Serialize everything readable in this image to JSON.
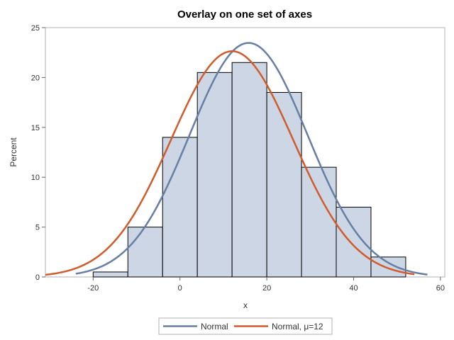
{
  "chart_data": {
    "type": "histogram",
    "title": "Overlay on one set of axes",
    "xlabel": "x",
    "ylabel": "Percent",
    "xlim": [
      -31,
      61
    ],
    "ylim": [
      0,
      25
    ],
    "xticks": [
      -20,
      0,
      20,
      40,
      60
    ],
    "yticks": [
      0,
      5,
      10,
      15,
      20,
      25
    ],
    "grid": false,
    "legend_position": "bottom",
    "bins": [
      {
        "x0": -20,
        "x1": -12,
        "value": 0.5
      },
      {
        "x0": -12,
        "x1": -4,
        "value": 5
      },
      {
        "x0": -4,
        "x1": 4,
        "value": 14
      },
      {
        "x0": 4,
        "x1": 12,
        "value": 20.5
      },
      {
        "x0": 12,
        "x1": 20,
        "value": 21.5
      },
      {
        "x0": 20,
        "x1": 28,
        "value": 18.5
      },
      {
        "x0": 28,
        "x1": 36,
        "value": 11
      },
      {
        "x0": 36,
        "x1": 44,
        "value": 7
      },
      {
        "x0": 44,
        "x1": 52,
        "value": 2
      }
    ],
    "series": [
      {
        "name": "Normal",
        "mean": 15.8,
        "sd": 13.6,
        "x_range": [
          -24,
          57
        ],
        "color": "#667fa2"
      },
      {
        "name": "Normal, μ=12",
        "mean": 12,
        "sd": 14.1,
        "x_range": [
          -31,
          54
        ],
        "color": "#d05b2c"
      }
    ],
    "colors": {
      "bar_fill": "#ccd6e5",
      "bar_stroke": "#000000"
    }
  }
}
